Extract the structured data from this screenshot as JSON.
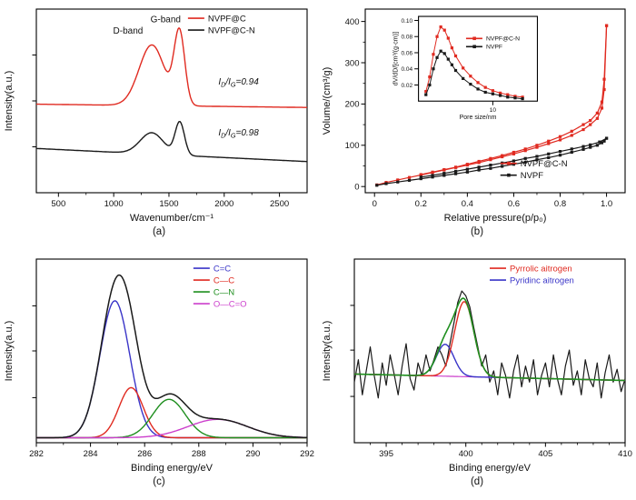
{
  "figure": {
    "type": "four-panel-scientific-figure",
    "background": "#ffffff",
    "colors": {
      "red": "#e02a20",
      "black": "#1a1a1a",
      "blue": "#3a35c8",
      "green": "#1f8f1f",
      "magenta": "#cc3fcc"
    }
  },
  "chart_data": [
    {
      "id": "a",
      "panel_label": "(a)",
      "type": "line",
      "xlabel": "Wavenumber/cm⁻¹",
      "ylabel": "Intensity(a.u.)",
      "xlim": [
        300,
        2750
      ],
      "ylim": [
        0,
        1.12
      ],
      "xticks": [
        500,
        1000,
        1500,
        2000,
        2500
      ],
      "xminor": [
        750,
        1250,
        1750,
        2250
      ],
      "yticks": [
        0.28,
        0.56,
        0.84
      ],
      "ytick_show_labels": false,
      "margins": {
        "l": 40,
        "r": 12,
        "t": 10,
        "b": 40
      },
      "series": [
        {
          "name": "NVPF@C",
          "color": "#e02a20",
          "width": 1.4,
          "baseline": [
            0.54,
            0.52
          ],
          "peaks": [
            {
              "center": 1345,
              "amp": 0.37,
              "sigma": 115
            },
            {
              "center": 1595,
              "amp": 0.44,
              "sigma": 48
            }
          ]
        },
        {
          "name": "NVPF@C-N",
          "color": "#1a1a1a",
          "width": 1.4,
          "baseline": [
            0.27,
            0.19
          ],
          "peaks": [
            {
              "center": 1345,
              "amp": 0.13,
              "sigma": 105
            },
            {
              "center": 1598,
              "amp": 0.2,
              "sigma": 42
            }
          ]
        }
      ],
      "annotations": [
        {
          "text": "D-band",
          "x": 1130,
          "y": 0.97,
          "size": 10
        },
        {
          "text": "G-band",
          "x": 1470,
          "y": 1.04,
          "size": 10
        },
        {
          "text": "I_D/I_G=0.94",
          "x": 2130,
          "y": 0.66,
          "italic": true,
          "size": 10
        },
        {
          "text": "I_D/I_G=0.98",
          "x": 2130,
          "y": 0.35,
          "italic": true,
          "size": 10
        }
      ],
      "legend": {
        "x": 0.56,
        "y": 0.05,
        "dy": 13,
        "items": [
          {
            "label": "NVPF@C",
            "color": "#e02a20"
          },
          {
            "label": "NVPF@C-N",
            "color": "#1a1a1a"
          }
        ]
      }
    },
    {
      "id": "b",
      "panel_label": "(b)",
      "type": "line",
      "xlabel": "Relative pressure(p/p₀)",
      "ylabel": "Volume/(cm³/g)",
      "xlim": [
        -0.04,
        1.08
      ],
      "ylim": [
        -15,
        430
      ],
      "xticks": [
        0,
        0.2,
        0.4,
        0.6,
        0.8,
        1.0
      ],
      "xtick_labels": [
        "0",
        "0.2",
        "0.4",
        "0.6",
        "0.8",
        "1.0"
      ],
      "xminor": [
        0.1,
        0.3,
        0.5,
        0.7,
        0.9
      ],
      "yticks": [
        0,
        100,
        200,
        300,
        400
      ],
      "yminor": [
        50,
        150,
        250,
        350
      ],
      "margins": {
        "l": 52,
        "r": 12,
        "t": 10,
        "b": 40
      },
      "series": [
        {
          "name": "NVPF@C-N adsorption",
          "color": "#e02a20",
          "width": 1.2,
          "marker": true,
          "x": [
            0.01,
            0.05,
            0.1,
            0.15,
            0.2,
            0.25,
            0.3,
            0.35,
            0.4,
            0.45,
            0.5,
            0.55,
            0.6,
            0.65,
            0.7,
            0.75,
            0.8,
            0.85,
            0.9,
            0.93,
            0.96,
            0.98,
            0.99,
            1.0
          ],
          "y": [
            4,
            10,
            16,
            22,
            28,
            34,
            40,
            46,
            52,
            58,
            65,
            72,
            79,
            87,
            95,
            104,
            113,
            124,
            138,
            150,
            165,
            190,
            235,
            390
          ]
        },
        {
          "name": "NVPF@C-N desorption",
          "color": "#e02a20",
          "width": 1.2,
          "marker": true,
          "x": [
            1.0,
            0.99,
            0.98,
            0.96,
            0.93,
            0.9,
            0.85,
            0.8,
            0.75,
            0.7,
            0.65,
            0.6,
            0.55,
            0.5,
            0.45,
            0.4,
            0.35,
            0.3,
            0.25,
            0.2
          ],
          "y": [
            390,
            260,
            205,
            178,
            160,
            150,
            134,
            121,
            110,
            100,
            91,
            83,
            75,
            68,
            61,
            54,
            47,
            41,
            35,
            29
          ]
        },
        {
          "name": "NVPF adsorption",
          "color": "#1a1a1a",
          "width": 1.2,
          "marker": true,
          "x": [
            0.01,
            0.05,
            0.1,
            0.15,
            0.2,
            0.25,
            0.3,
            0.35,
            0.4,
            0.45,
            0.5,
            0.55,
            0.6,
            0.65,
            0.7,
            0.75,
            0.8,
            0.85,
            0.9,
            0.93,
            0.96,
            0.98,
            0.99,
            1.0
          ],
          "y": [
            3,
            7,
            11,
            15,
            19,
            23,
            27,
            31,
            35,
            40,
            44,
            49,
            54,
            59,
            65,
            70,
            76,
            83,
            90,
            95,
            100,
            106,
            110,
            117
          ]
        },
        {
          "name": "NVPF desorption",
          "color": "#1a1a1a",
          "width": 1.2,
          "marker": true,
          "x": [
            1.0,
            0.97,
            0.93,
            0.9,
            0.85,
            0.8,
            0.75,
            0.7,
            0.65,
            0.6,
            0.55,
            0.5,
            0.45,
            0.4,
            0.35,
            0.3,
            0.25,
            0.2
          ],
          "y": [
            117,
            108,
            101,
            97,
            91,
            85,
            79,
            73,
            68,
            62,
            57,
            52,
            47,
            42,
            37,
            32,
            27,
            23
          ]
        }
      ],
      "legend": {
        "x": 0.52,
        "y": 0.84,
        "dy": 13,
        "items": [
          {
            "label": "NVPF@C-N",
            "color": "#e02a20",
            "marker": true
          },
          {
            "label": "NVPF",
            "color": "#1a1a1a",
            "marker": true
          }
        ]
      },
      "inset": {
        "pos": [
          0.1,
          0.02,
          0.58,
          0.6
        ],
        "xlabel": "Pore size/nm",
        "ylabel": "dV/dD/[cm³/(g·cm)]",
        "xlim": [
          0,
          16
        ],
        "ylim": [
          0,
          0.105
        ],
        "xticks": [
          10
        ],
        "yticks": [
          0.02,
          0.04,
          0.06,
          0.08,
          0.1
        ],
        "ytick_labels": [
          "0.02",
          "0.04",
          "0.06",
          "0.08",
          "0.10"
        ],
        "margins": {
          "l": 30,
          "r": 5,
          "t": 4,
          "b": 24
        },
        "tick_font": 6.5,
        "label_font": 7,
        "xlabel_dy": 20,
        "ylabel_x": 7,
        "series": [
          {
            "name": "NVPF@C-N",
            "color": "#e02a20",
            "width": 1,
            "marker": true,
            "x": [
              1,
              1.5,
              2,
              2.5,
              3,
              3.5,
              4,
              4.5,
              5,
              6,
              7,
              8,
              9,
              10,
              11,
              12,
              13,
              14
            ],
            "y": [
              0.012,
              0.03,
              0.058,
              0.08,
              0.092,
              0.088,
              0.078,
              0.066,
              0.056,
              0.041,
              0.031,
              0.023,
              0.017,
              0.013,
              0.01,
              0.008,
              0.006,
              0.005
            ]
          },
          {
            "name": "NVPF",
            "color": "#1a1a1a",
            "width": 1,
            "marker": true,
            "x": [
              1,
              1.5,
              2,
              2.5,
              3,
              3.5,
              4,
              4.5,
              5,
              6,
              7,
              8,
              9,
              10,
              11,
              12,
              13,
              14
            ],
            "y": [
              0.008,
              0.02,
              0.04,
              0.054,
              0.062,
              0.059,
              0.052,
              0.045,
              0.038,
              0.028,
              0.021,
              0.015,
              0.011,
              0.009,
              0.007,
              0.005,
              0.004,
              0.003
            ]
          }
        ],
        "legend": {
          "x": 0.4,
          "y": 0.26,
          "dy": 9,
          "size": 6.8,
          "items": [
            {
              "label": "NVPF@C-N",
              "color": "#e02a20",
              "marker": true
            },
            {
              "label": "NVPF",
              "color": "#1a1a1a",
              "marker": true
            }
          ]
        }
      }
    },
    {
      "id": "c",
      "panel_label": "(c)",
      "type": "line",
      "xlabel": "Binding energy/eV",
      "ylabel": "Intensity(a.u.)",
      "xlim": [
        282,
        292
      ],
      "ylim": [
        0,
        1.1
      ],
      "xticks": [
        282,
        284,
        286,
        288,
        290,
        292
      ],
      "xminor": [
        283,
        285,
        287,
        289,
        291
      ],
      "yticks": [
        0.27,
        0.55,
        0.82
      ],
      "ytick_show_labels": false,
      "margins": {
        "l": 40,
        "r": 12,
        "t": 10,
        "b": 40
      },
      "series": [
        {
          "name": "C=C",
          "color": "#3a35c8",
          "width": 1.4,
          "baseline": 0.03,
          "peaks": [
            {
              "center": 284.9,
              "amp": 0.82,
              "sigma": 0.55
            }
          ]
        },
        {
          "name": "C—C",
          "color": "#e02a20",
          "width": 1.4,
          "baseline": 0.03,
          "peaks": [
            {
              "center": 285.5,
              "amp": 0.3,
              "sigma": 0.45
            }
          ]
        },
        {
          "name": "C—N",
          "color": "#1f8f1f",
          "width": 1.4,
          "baseline": 0.03,
          "peaks": [
            {
              "center": 286.9,
              "amp": 0.23,
              "sigma": 0.6
            }
          ]
        },
        {
          "name": "O—C=O",
          "color": "#cc3fcc",
          "width": 1.4,
          "baseline": 0.03,
          "peaks": [
            {
              "center": 288.7,
              "amp": 0.11,
              "sigma": 1.1
            }
          ]
        },
        {
          "name": "envelope",
          "color": "#1a1a1a",
          "width": 1.5,
          "baseline": 0.03,
          "peaks": [
            {
              "center": 284.9,
              "amp": 0.82,
              "sigma": 0.55
            },
            {
              "center": 285.5,
              "amp": 0.3,
              "sigma": 0.45
            },
            {
              "center": 286.9,
              "amp": 0.23,
              "sigma": 0.6
            },
            {
              "center": 288.7,
              "amp": 0.11,
              "sigma": 1.1
            }
          ]
        }
      ],
      "legend": {
        "x": 0.58,
        "y": 0.05,
        "dy": 13,
        "items": [
          {
            "label": "C=C",
            "color": "#3a35c8",
            "text_color": "#3a35c8"
          },
          {
            "label": "C—C",
            "color": "#e02a20",
            "text_color": "#e02a20"
          },
          {
            "label": "C—N",
            "color": "#1f8f1f",
            "text_color": "#1f8f1f"
          },
          {
            "label": "O—C=O",
            "color": "#cc3fcc",
            "text_color": "#cc3fcc"
          }
        ]
      }
    },
    {
      "id": "d",
      "panel_label": "(d)",
      "type": "line",
      "xlabel": "Binding energy/eV",
      "ylabel": "Intensity(a.u.)",
      "xlim": [
        393,
        410
      ],
      "ylim": [
        0,
        1.15
      ],
      "xticks": [
        395,
        400,
        405,
        410
      ],
      "xminor": [
        394,
        396,
        397,
        398,
        399,
        401,
        402,
        403,
        404,
        406,
        407,
        408,
        409
      ],
      "yticks": [
        0.29,
        0.58,
        0.86
      ],
      "ytick_show_labels": false,
      "margins": {
        "l": 40,
        "r": 12,
        "t": 10,
        "b": 40
      },
      "series": [
        {
          "name": "raw signal",
          "color": "#1a1a1a",
          "width": 1.2,
          "x0": 393,
          "dx": 0.25,
          "y": [
            0.38,
            0.52,
            0.3,
            0.45,
            0.6,
            0.42,
            0.28,
            0.5,
            0.36,
            0.55,
            0.43,
            0.3,
            0.48,
            0.62,
            0.4,
            0.33,
            0.5,
            0.42,
            0.55,
            0.45,
            0.52,
            0.6,
            0.55,
            0.48,
            0.62,
            0.75,
            0.88,
            0.95,
            0.92,
            0.85,
            0.72,
            0.6,
            0.48,
            0.55,
            0.38,
            0.45,
            0.3,
            0.5,
            0.42,
            0.28,
            0.45,
            0.55,
            0.35,
            0.48,
            0.38,
            0.52,
            0.3,
            0.42,
            0.5,
            0.35,
            0.55,
            0.4,
            0.3,
            0.48,
            0.58,
            0.36,
            0.45,
            0.3,
            0.52,
            0.4,
            0.35,
            0.5,
            0.28,
            0.44,
            0.55,
            0.38,
            0.46,
            0.32,
            0.4
          ]
        },
        {
          "name": "baseline",
          "color": "#cc3fcc",
          "width": 1.2,
          "baseline": [
            0.43,
            0.39
          ],
          "peaks": []
        },
        {
          "name": "Pyridinc aitrogen",
          "color": "#3a35c8",
          "width": 1.4,
          "baseline": [
            0.43,
            0.39
          ],
          "peaks": [
            {
              "center": 398.7,
              "amp": 0.2,
              "sigma": 0.55
            }
          ]
        },
        {
          "name": "Pyrrolic aitrogen",
          "color": "#e02a20",
          "width": 1.4,
          "baseline": [
            0.43,
            0.39
          ],
          "peaks": [
            {
              "center": 399.9,
              "amp": 0.47,
              "sigma": 0.6
            }
          ]
        },
        {
          "name": "fit envelope",
          "color": "#1f8f1f",
          "width": 1.6,
          "baseline": [
            0.43,
            0.39
          ],
          "peaks": [
            {
              "center": 398.7,
              "amp": 0.2,
              "sigma": 0.55
            },
            {
              "center": 399.9,
              "amp": 0.47,
              "sigma": 0.6
            }
          ]
        }
      ],
      "legend": {
        "x": 0.5,
        "y": 0.05,
        "dy": 13,
        "items": [
          {
            "label": "Pyrrolic aitrogen",
            "color": "#e02a20",
            "text_color": "#e02a20"
          },
          {
            "label": "Pyridinc aitrogen",
            "color": "#3a35c8",
            "text_color": "#3a35c8"
          }
        ]
      }
    }
  ]
}
